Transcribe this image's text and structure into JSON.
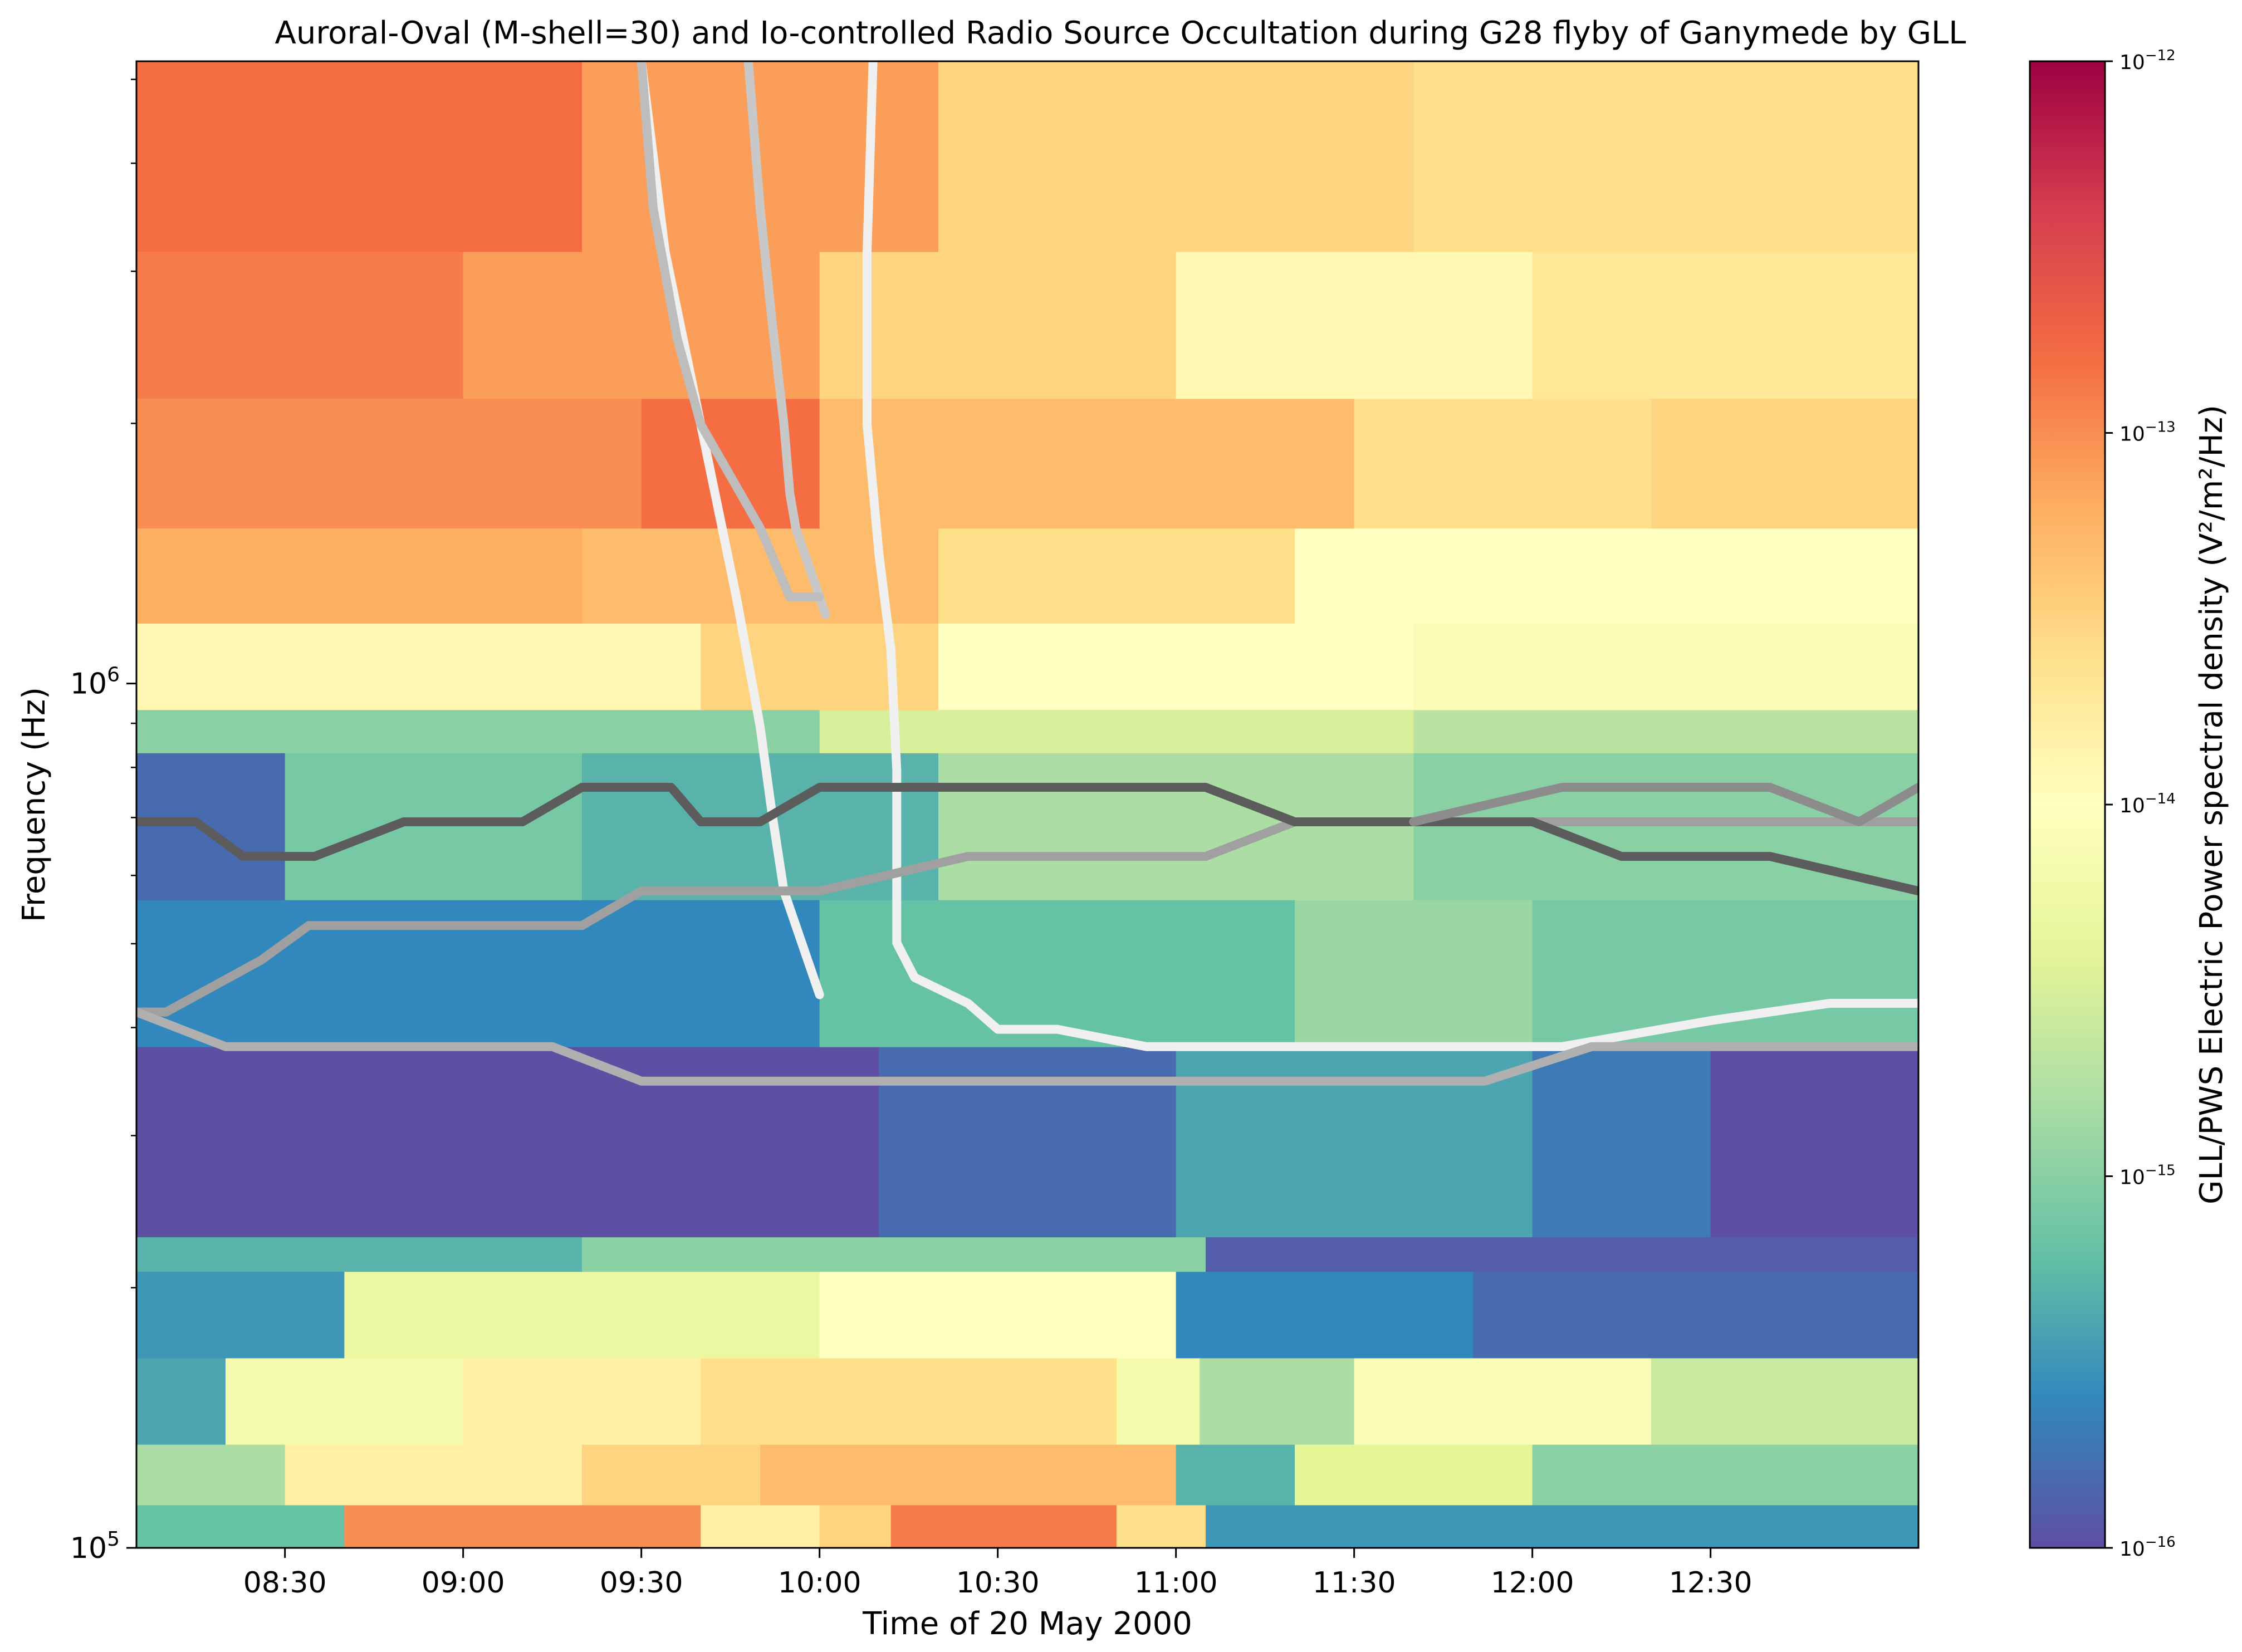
{
  "chart_data": {
    "type": "heatmap",
    "title": "Auroral-Oval (M-shell=30) and Io-controlled Radio Source Occultation during G28 flyby of Ganymede by GLL",
    "xlabel": "Time of 20 May 2000",
    "ylabel": "Frequency (Hz)",
    "x_range_minutes_of_day": [
      485,
      785
    ],
    "x_ticks": [
      {
        "label": "08:30",
        "value": 510
      },
      {
        "label": "09:00",
        "value": 540
      },
      {
        "label": "09:30",
        "value": 570
      },
      {
        "label": "10:00",
        "value": 600
      },
      {
        "label": "10:30",
        "value": 630
      },
      {
        "label": "11:00",
        "value": 660
      },
      {
        "label": "11:30",
        "value": 690
      },
      {
        "label": "12:00",
        "value": 720
      },
      {
        "label": "12:30",
        "value": 750
      }
    ],
    "y_scale": "log",
    "y_range_log10": [
      5.0,
      6.72
    ],
    "y_ticks": [
      {
        "base": "10",
        "exp": "5",
        "value": 5
      },
      {
        "base": "10",
        "exp": "6",
        "value": 6
      }
    ],
    "y_minor_ticks_log10": [
      5.301,
      5.477,
      5.602,
      5.699,
      5.778,
      5.845,
      5.903,
      5.954,
      6.301,
      6.477,
      6.602,
      6.699
    ],
    "colorbar": {
      "label": "GLL/PWS Electric Power spectral density (V²/m²/Hz)",
      "scale": "log",
      "range_log10": [
        -16,
        -12
      ],
      "colormap": [
        "#5e4fa2",
        "#3288bd",
        "#66c2a5",
        "#abdda4",
        "#e6f598",
        "#ffffbf",
        "#fee08b",
        "#fdae61",
        "#f46d43",
        "#d53e4f",
        "#9e0142"
      ],
      "ticks": [
        {
          "base": "10",
          "exp": "−12",
          "value": -12
        },
        {
          "base": "10",
          "exp": "−13",
          "value": -13
        },
        {
          "base": "10",
          "exp": "−14",
          "value": -14
        },
        {
          "base": "10",
          "exp": "−15",
          "value": -15
        },
        {
          "base": "10",
          "exp": "−16",
          "value": -16
        }
      ]
    },
    "heatmap_bands": [
      {
        "flog": [
          5.0,
          5.05
        ],
        "segments": [
          [
            485,
            520,
            -15.2
          ],
          [
            520,
            580,
            -13.0
          ],
          [
            580,
            600,
            -13.8
          ],
          [
            600,
            612,
            -13.5
          ],
          [
            612,
            650,
            -12.9
          ],
          [
            650,
            665,
            -13.6
          ],
          [
            665,
            785,
            -15.5
          ]
        ]
      },
      {
        "flog": [
          5.05,
          5.12
        ],
        "segments": [
          [
            485,
            510,
            -14.8
          ],
          [
            510,
            560,
            -13.8
          ],
          [
            560,
            590,
            -13.5
          ],
          [
            590,
            660,
            -13.3
          ],
          [
            660,
            680,
            -15.3
          ],
          [
            680,
            720,
            -14.4
          ],
          [
            720,
            785,
            -15.0
          ]
        ]
      },
      {
        "flog": [
          5.12,
          5.22
        ],
        "segments": [
          [
            485,
            500,
            -15.4
          ],
          [
            500,
            540,
            -14.2
          ],
          [
            540,
            580,
            -13.8
          ],
          [
            580,
            650,
            -13.6
          ],
          [
            650,
            664,
            -14.2
          ],
          [
            664,
            690,
            -14.8
          ],
          [
            690,
            740,
            -14.1
          ],
          [
            740,
            785,
            -14.6
          ]
        ]
      },
      {
        "flog": [
          5.22,
          5.32
        ],
        "segments": [
          [
            485,
            520,
            -15.5
          ],
          [
            520,
            600,
            -14.3
          ],
          [
            600,
            660,
            -14.0
          ],
          [
            660,
            710,
            -15.6
          ],
          [
            710,
            785,
            -15.8
          ]
        ]
      },
      {
        "flog": [
          5.32,
          5.36
        ],
        "segments": [
          [
            485,
            560,
            -15.3
          ],
          [
            560,
            665,
            -15.0
          ],
          [
            665,
            785,
            -15.9
          ]
        ]
      },
      {
        "flog": [
          5.36,
          5.58
        ],
        "segments": [
          [
            485,
            610,
            -16.0
          ],
          [
            610,
            660,
            -15.8
          ],
          [
            660,
            720,
            -15.4
          ],
          [
            720,
            750,
            -15.7
          ],
          [
            750,
            785,
            -16.0
          ]
        ]
      },
      {
        "flog": [
          5.58,
          5.75
        ],
        "segments": [
          [
            485,
            600,
            -15.6
          ],
          [
            600,
            680,
            -15.2
          ],
          [
            680,
            720,
            -14.9
          ],
          [
            720,
            785,
            -15.1
          ]
        ]
      },
      {
        "flog": [
          5.75,
          5.92
        ],
        "segments": [
          [
            485,
            510,
            -15.8
          ],
          [
            510,
            560,
            -15.1
          ],
          [
            560,
            620,
            -15.3
          ],
          [
            620,
            700,
            -14.8
          ],
          [
            700,
            785,
            -15.0
          ]
        ]
      },
      {
        "flog": [
          5.92,
          5.97
        ],
        "segments": [
          [
            485,
            600,
            -15.0
          ],
          [
            600,
            700,
            -14.5
          ],
          [
            700,
            785,
            -14.7
          ]
        ]
      },
      {
        "flog": [
          5.97,
          6.07
        ],
        "segments": [
          [
            485,
            580,
            -13.9
          ],
          [
            580,
            620,
            -13.5
          ],
          [
            620,
            700,
            -14.0
          ],
          [
            700,
            785,
            -14.1
          ]
        ]
      },
      {
        "flog": [
          6.07,
          6.18
        ],
        "segments": [
          [
            485,
            560,
            -13.2
          ],
          [
            560,
            620,
            -13.3
          ],
          [
            620,
            680,
            -13.6
          ],
          [
            680,
            785,
            -14.0
          ]
        ]
      },
      {
        "flog": [
          6.18,
          6.33
        ],
        "segments": [
          [
            485,
            570,
            -13.0
          ],
          [
            570,
            600,
            -12.8
          ],
          [
            600,
            690,
            -13.3
          ],
          [
            690,
            740,
            -13.6
          ],
          [
            740,
            785,
            -13.5
          ]
        ]
      },
      {
        "flog": [
          6.33,
          6.5
        ],
        "segments": [
          [
            485,
            540,
            -12.9
          ],
          [
            540,
            600,
            -13.1
          ],
          [
            600,
            660,
            -13.5
          ],
          [
            660,
            720,
            -13.9
          ],
          [
            720,
            785,
            -13.7
          ]
        ]
      },
      {
        "flog": [
          6.5,
          6.72
        ],
        "segments": [
          [
            485,
            560,
            -12.8
          ],
          [
            560,
            620,
            -13.1
          ],
          [
            620,
            700,
            -13.5
          ],
          [
            700,
            785,
            -13.6
          ]
        ]
      }
    ],
    "series": [
      {
        "name": "white-curve-1",
        "color": "#f0f0f0",
        "points": [
          [
            570,
            6.72
          ],
          [
            574,
            6.5
          ],
          [
            580,
            6.3
          ],
          [
            586,
            6.1
          ],
          [
            590,
            5.95
          ],
          [
            592,
            5.85
          ],
          [
            594,
            5.76
          ],
          [
            597,
            5.7
          ],
          [
            600,
            5.64
          ]
        ]
      },
      {
        "name": "white-curve-2",
        "color": "#f0f0f0",
        "points": [
          [
            609,
            6.72
          ],
          [
            608,
            6.5
          ],
          [
            608,
            6.3
          ],
          [
            610,
            6.15
          ],
          [
            612,
            6.04
          ],
          [
            613,
            5.9
          ],
          [
            613,
            5.7
          ],
          [
            616,
            5.66
          ],
          [
            625,
            5.63
          ],
          [
            630,
            5.6
          ],
          [
            640,
            5.6
          ],
          [
            655,
            5.58
          ],
          [
            662,
            5.58
          ],
          [
            675,
            5.58
          ],
          [
            700,
            5.58
          ],
          [
            725,
            5.58
          ],
          [
            750,
            5.61
          ],
          [
            770,
            5.63
          ],
          [
            785,
            5.63
          ]
        ]
      },
      {
        "name": "grey-curve-1",
        "color": "#c8c8c8",
        "points": [
          [
            588,
            6.72
          ],
          [
            590,
            6.55
          ],
          [
            592,
            6.42
          ],
          [
            594,
            6.3
          ],
          [
            595,
            6.22
          ],
          [
            596,
            6.18
          ],
          [
            598,
            6.14
          ],
          [
            600,
            6.1
          ],
          [
            601,
            6.08
          ]
        ]
      },
      {
        "name": "grey-curve-2",
        "color": "#bdbdbd",
        "points": [
          [
            570,
            6.72
          ],
          [
            572,
            6.55
          ],
          [
            576,
            6.4
          ],
          [
            580,
            6.3
          ],
          [
            585,
            6.24
          ],
          [
            590,
            6.18
          ],
          [
            595,
            6.1
          ],
          [
            600,
            6.1
          ]
        ]
      },
      {
        "name": "mid-grey-step",
        "color": "#a0a0a0",
        "points": [
          [
            485,
            5.62
          ],
          [
            490,
            5.62
          ],
          [
            498,
            5.65
          ],
          [
            506,
            5.68
          ],
          [
            514,
            5.72
          ],
          [
            522,
            5.72
          ],
          [
            535,
            5.72
          ],
          [
            550,
            5.72
          ],
          [
            560,
            5.72
          ],
          [
            570,
            5.76
          ],
          [
            590,
            5.76
          ],
          [
            600,
            5.76
          ],
          [
            625,
            5.8
          ],
          [
            645,
            5.8
          ],
          [
            665,
            5.8
          ],
          [
            680,
            5.84
          ],
          [
            700,
            5.84
          ],
          [
            715,
            5.84
          ],
          [
            730,
            5.84
          ],
          [
            745,
            5.84
          ],
          [
            760,
            5.84
          ],
          [
            770,
            5.84
          ],
          [
            775,
            5.84
          ],
          [
            785,
            5.84
          ]
        ]
      },
      {
        "name": "light-grey-step",
        "color": "#b0b0b0",
        "points": [
          [
            485,
            5.62
          ],
          [
            500,
            5.58
          ],
          [
            520,
            5.58
          ],
          [
            540,
            5.58
          ],
          [
            555,
            5.58
          ],
          [
            570,
            5.54
          ],
          [
            600,
            5.54
          ],
          [
            630,
            5.54
          ],
          [
            650,
            5.54
          ],
          [
            675,
            5.54
          ],
          [
            690,
            5.54
          ],
          [
            700,
            5.54
          ],
          [
            712,
            5.54
          ],
          [
            730,
            5.58
          ],
          [
            750,
            5.58
          ],
          [
            770,
            5.58
          ],
          [
            785,
            5.58
          ]
        ]
      },
      {
        "name": "dark-grey-step",
        "color": "#5c5c5c",
        "points": [
          [
            485,
            5.84
          ],
          [
            495,
            5.84
          ],
          [
            503,
            5.8
          ],
          [
            515,
            5.8
          ],
          [
            530,
            5.84
          ],
          [
            550,
            5.84
          ],
          [
            560,
            5.88
          ],
          [
            575,
            5.88
          ],
          [
            580,
            5.84
          ],
          [
            590,
            5.84
          ],
          [
            600,
            5.88
          ],
          [
            620,
            5.88
          ],
          [
            645,
            5.88
          ],
          [
            665,
            5.88
          ],
          [
            680,
            5.84
          ],
          [
            700,
            5.84
          ],
          [
            720,
            5.84
          ],
          [
            735,
            5.8
          ],
          [
            760,
            5.8
          ],
          [
            785,
            5.76
          ]
        ]
      },
      {
        "name": "grey-right-step",
        "color": "#8c8c8c",
        "points": [
          [
            700,
            5.84
          ],
          [
            725,
            5.88
          ],
          [
            745,
            5.88
          ],
          [
            760,
            5.88
          ],
          [
            775,
            5.84
          ],
          [
            785,
            5.88
          ]
        ]
      }
    ]
  }
}
